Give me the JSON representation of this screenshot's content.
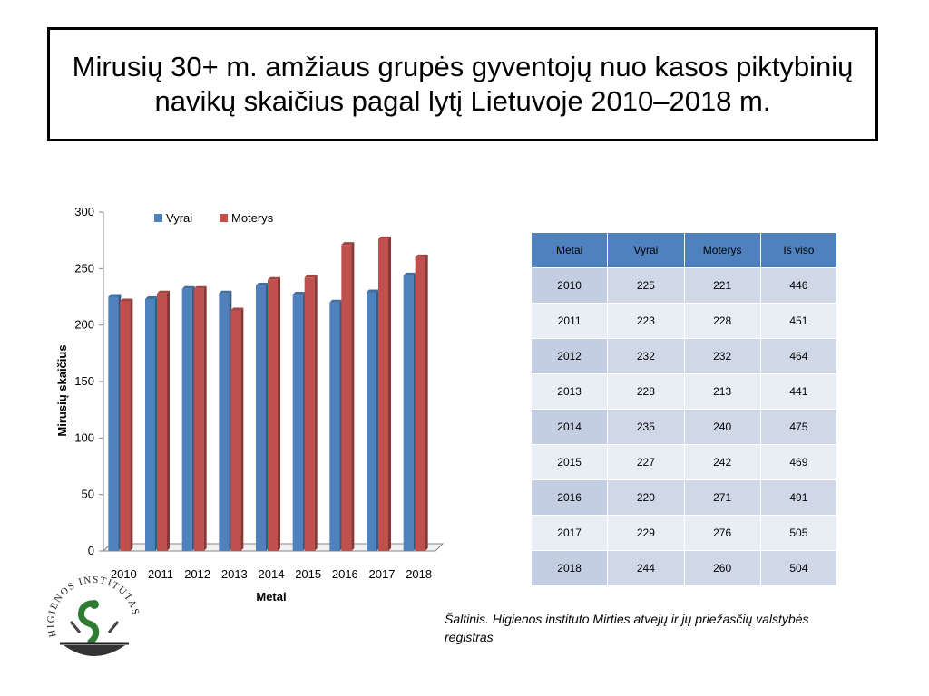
{
  "slide": {
    "title": "Mirusių 30+ m. amžiaus grupės gyventojų nuo kasos piktybinių navikų skaičius pagal lytį Lietuvoje 2010–2018 m.",
    "source": "Šaltinis. Higienos instituto  Mirties atvejų ir jų priežasčių valstybės registras",
    "logo_text": "HIGIENOS INSTITUTAS"
  },
  "chart_data": {
    "type": "bar",
    "categories": [
      "2010",
      "2011",
      "2012",
      "2013",
      "2014",
      "2015",
      "2016",
      "2017",
      "2018"
    ],
    "series": [
      {
        "name": "Vyrai",
        "values": [
          225,
          223,
          232,
          228,
          235,
          227,
          220,
          229,
          244
        ],
        "color": "#4f81bd"
      },
      {
        "name": "Moterys",
        "values": [
          221,
          228,
          232,
          213,
          240,
          242,
          271,
          276,
          260
        ],
        "color": "#c0504d"
      }
    ],
    "xlabel": "Metai",
    "ylabel": "Mirusių skaičius",
    "ylim": [
      0,
      300
    ],
    "yticks": [
      0,
      50,
      100,
      150,
      200,
      250,
      300
    ],
    "legend": "top-left",
    "grid": false
  },
  "table": {
    "headers": [
      "Metai",
      "Vyrai",
      "Moterys",
      "Iš viso"
    ],
    "rows": [
      [
        "2010",
        "225",
        "221",
        "446"
      ],
      [
        "2011",
        "223",
        "228",
        "451"
      ],
      [
        "2012",
        "232",
        "232",
        "464"
      ],
      [
        "2013",
        "228",
        "213",
        "441"
      ],
      [
        "2014",
        "235",
        "240",
        "475"
      ],
      [
        "2015",
        "227",
        "242",
        "469"
      ],
      [
        "2016",
        "220",
        "271",
        "491"
      ],
      [
        "2017",
        "229",
        "276",
        "505"
      ],
      [
        "2018",
        "244",
        "260",
        "504"
      ]
    ]
  }
}
